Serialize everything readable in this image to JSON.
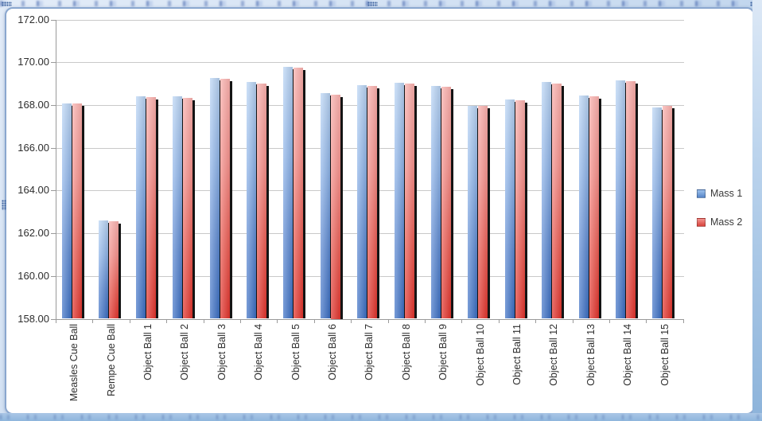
{
  "legend": {
    "items": [
      {
        "label": "Mass 1",
        "icon": "blue-series-swatch"
      },
      {
        "label": "Mass 2",
        "icon": "red-series-swatch"
      }
    ]
  },
  "colors": {
    "series1_light": "#bad5f5",
    "series1_dark": "#3a6ec4",
    "series2_light": "#f9afac",
    "series2_dark": "#e0312a",
    "gridline": "#c9c9c9",
    "axis": "#9a9a9a",
    "frame_border": "#8aa7cf",
    "bar_shadow": "#141414"
  },
  "chart_data": {
    "type": "bar",
    "title": "",
    "xlabel": "",
    "ylabel": "",
    "grid": true,
    "legend_position": "right",
    "ylim": [
      158,
      172
    ],
    "ytick_step": 2,
    "ytick_labels": [
      "158.00",
      "160.00",
      "162.00",
      "164.00",
      "166.00",
      "168.00",
      "170.00",
      "172.00"
    ],
    "categories": [
      "Measles Cue Ball",
      "Rempe Cue Ball",
      "Object Ball 1",
      "Object Ball 2",
      "Object Ball 3",
      "Object Ball 4",
      "Object Ball 5",
      "Object Ball 6",
      "Object Ball 7",
      "Object Ball 8",
      "Object Ball 9",
      "Object Ball 10",
      "Object Ball 11",
      "Object Ball 12",
      "Object Ball 13",
      "Object Ball 14",
      "Object Ball 15"
    ],
    "series": [
      {
        "name": "Mass 1",
        "values": [
          168.08,
          162.6,
          168.42,
          168.4,
          169.27,
          169.08,
          169.8,
          168.57,
          168.92,
          169.05,
          168.9,
          167.96,
          168.25,
          169.06,
          168.46,
          169.15,
          167.9
        ]
      },
      {
        "name": "Mass 2",
        "values": [
          168.06,
          162.56,
          168.38,
          168.35,
          169.23,
          169.02,
          169.75,
          168.5,
          168.9,
          169.01,
          168.85,
          167.95,
          168.21,
          169.0,
          168.41,
          169.12,
          167.95
        ]
      }
    ]
  }
}
